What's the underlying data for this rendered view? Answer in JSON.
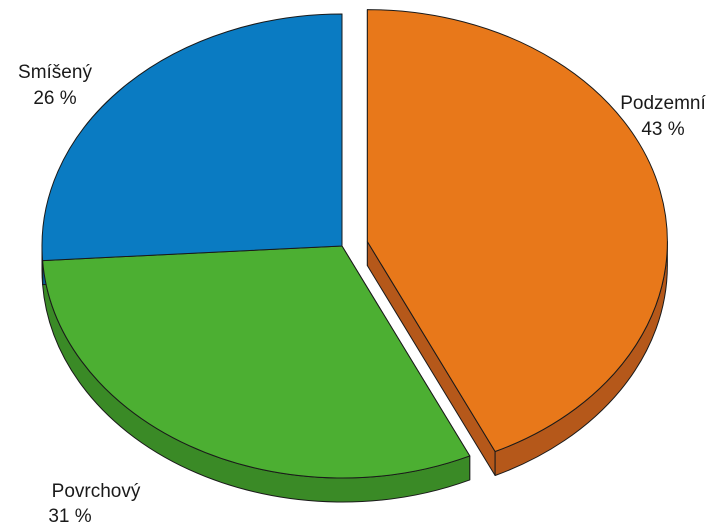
{
  "chart_data": {
    "type": "pie",
    "variant": "3d-exploded",
    "title": "",
    "slices": [
      {
        "name": "Podzemní",
        "value": 43,
        "value_label": "43 %",
        "color": "#E8781A",
        "side_color": "#B5581A",
        "exploded": true
      },
      {
        "name": "Povrchový",
        "value": 31,
        "value_label": "31 %",
        "color": "#4CAF32",
        "side_color": "#3A8A26",
        "exploded": false
      },
      {
        "name": "Smíšený",
        "value": 26,
        "value_label": "26 %",
        "color": "#0A7BC2",
        "side_color": "#085F96",
        "exploded": false
      }
    ],
    "legend": "none",
    "labels": "outside"
  }
}
